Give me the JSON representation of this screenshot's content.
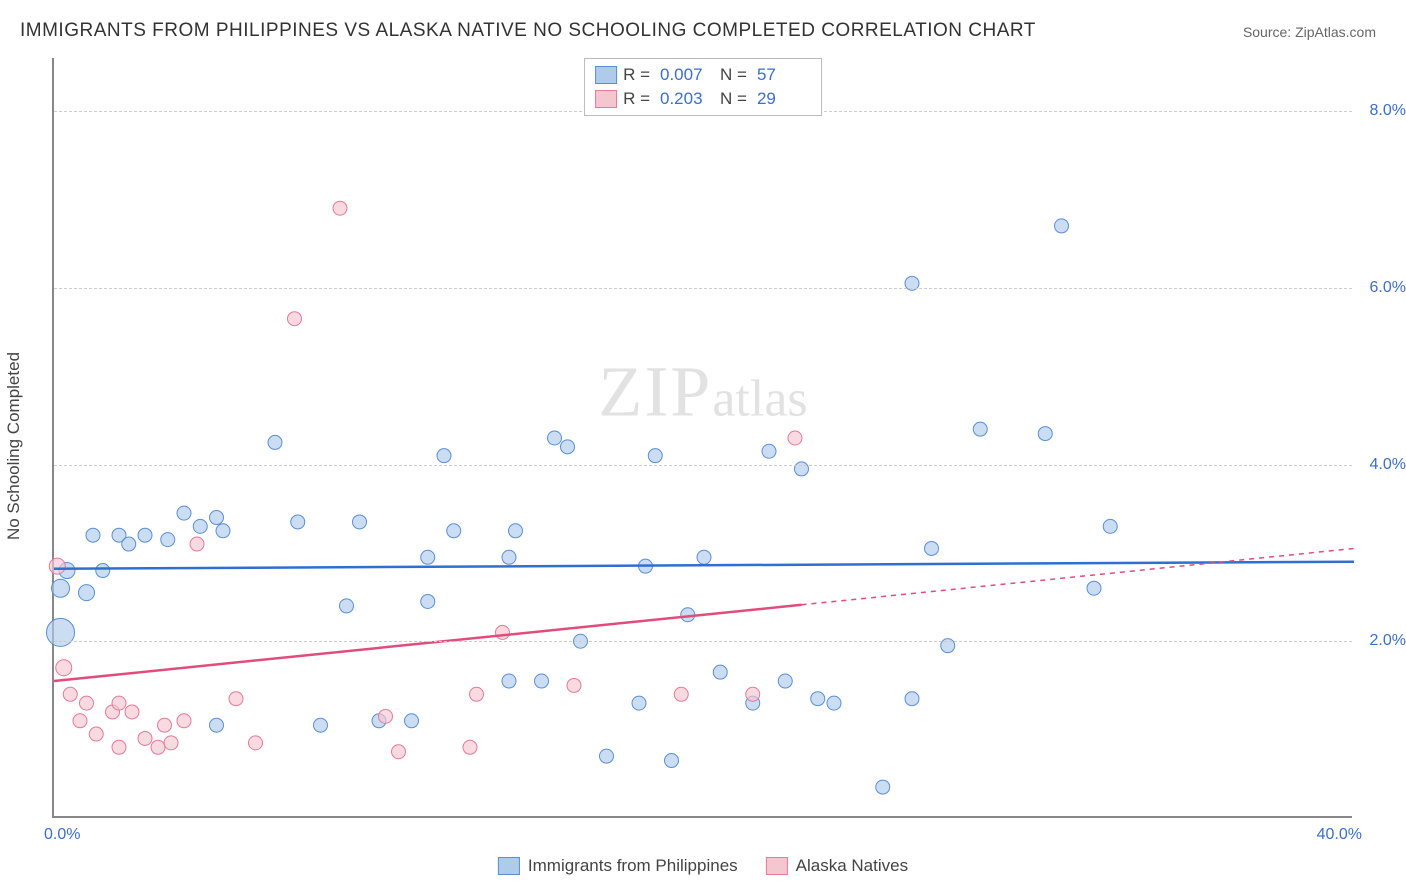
{
  "title": "IMMIGRANTS FROM PHILIPPINES VS ALASKA NATIVE NO SCHOOLING COMPLETED CORRELATION CHART",
  "source": "Source: ZipAtlas.com",
  "watermark_zip": "ZIP",
  "watermark_atlas": "atlas",
  "ylabel": "No Schooling Completed",
  "chart": {
    "type": "scatter",
    "xlim": [
      0,
      40
    ],
    "ylim": [
      0,
      8.6
    ],
    "x_tick_min": "0.0%",
    "x_tick_max": "40.0%",
    "y_ticks": [
      {
        "v": 2.0,
        "label": "2.0%"
      },
      {
        "v": 4.0,
        "label": "4.0%"
      },
      {
        "v": 6.0,
        "label": "6.0%"
      },
      {
        "v": 8.0,
        "label": "8.0%"
      }
    ],
    "background_color": "#ffffff",
    "grid_color": "#cccccc",
    "series": [
      {
        "key": "philippines",
        "label": "Immigrants from Philippines",
        "fill": "#aecbeb",
        "stroke": "#5a8fd6",
        "line_color": "#2f6fd0",
        "r_value": "0.007",
        "n_value": "57",
        "trend": {
          "x1": 0,
          "y1": 2.82,
          "x2": 40,
          "y2": 2.9,
          "solid_to": 40
        },
        "points": [
          {
            "x": 0.2,
            "y": 2.1,
            "r": 14
          },
          {
            "x": 0.2,
            "y": 2.6,
            "r": 9
          },
          {
            "x": 0.4,
            "y": 2.8,
            "r": 8
          },
          {
            "x": 1.0,
            "y": 2.55,
            "r": 8
          },
          {
            "x": 1.2,
            "y": 3.2,
            "r": 7
          },
          {
            "x": 1.5,
            "y": 2.8,
            "r": 7
          },
          {
            "x": 2.0,
            "y": 3.2,
            "r": 7
          },
          {
            "x": 2.3,
            "y": 3.1,
            "r": 7
          },
          {
            "x": 2.8,
            "y": 3.2,
            "r": 7
          },
          {
            "x": 3.5,
            "y": 3.15,
            "r": 7
          },
          {
            "x": 4.0,
            "y": 3.45,
            "r": 7
          },
          {
            "x": 4.5,
            "y": 3.3,
            "r": 7
          },
          {
            "x": 5.0,
            "y": 3.4,
            "r": 7
          },
          {
            "x": 5.2,
            "y": 3.25,
            "r": 7
          },
          {
            "x": 6.8,
            "y": 4.25,
            "r": 7
          },
          {
            "x": 7.5,
            "y": 3.35,
            "r": 7
          },
          {
            "x": 9.0,
            "y": 2.4,
            "r": 7
          },
          {
            "x": 9.4,
            "y": 3.35,
            "r": 7
          },
          {
            "x": 10.0,
            "y": 1.1,
            "r": 7
          },
          {
            "x": 11.0,
            "y": 1.1,
            "r": 7
          },
          {
            "x": 11.5,
            "y": 2.45,
            "r": 7
          },
          {
            "x": 11.5,
            "y": 2.95,
            "r": 7
          },
          {
            "x": 12.0,
            "y": 4.1,
            "r": 7
          },
          {
            "x": 12.3,
            "y": 3.25,
            "r": 7
          },
          {
            "x": 14.0,
            "y": 1.55,
            "r": 7
          },
          {
            "x": 14.0,
            "y": 2.95,
            "r": 7
          },
          {
            "x": 14.2,
            "y": 3.25,
            "r": 7
          },
          {
            "x": 15.0,
            "y": 1.55,
            "r": 7
          },
          {
            "x": 15.4,
            "y": 4.3,
            "r": 7
          },
          {
            "x": 15.8,
            "y": 4.2,
            "r": 7
          },
          {
            "x": 16.2,
            "y": 2.0,
            "r": 7
          },
          {
            "x": 17.0,
            "y": 0.7,
            "r": 7
          },
          {
            "x": 18.0,
            "y": 1.3,
            "r": 7
          },
          {
            "x": 18.5,
            "y": 4.1,
            "r": 7
          },
          {
            "x": 19.0,
            "y": 0.65,
            "r": 7
          },
          {
            "x": 19.5,
            "y": 2.3,
            "r": 7
          },
          {
            "x": 20.0,
            "y": 2.95,
            "r": 7
          },
          {
            "x": 20.5,
            "y": 1.65,
            "r": 7
          },
          {
            "x": 21.5,
            "y": 1.3,
            "r": 7
          },
          {
            "x": 22.0,
            "y": 4.15,
            "r": 7
          },
          {
            "x": 22.5,
            "y": 1.55,
            "r": 7
          },
          {
            "x": 23.0,
            "y": 3.95,
            "r": 7
          },
          {
            "x": 23.5,
            "y": 1.35,
            "r": 7
          },
          {
            "x": 24.0,
            "y": 1.3,
            "r": 7
          },
          {
            "x": 25.5,
            "y": 0.35,
            "r": 7
          },
          {
            "x": 26.4,
            "y": 6.05,
            "r": 7
          },
          {
            "x": 26.4,
            "y": 1.35,
            "r": 7
          },
          {
            "x": 27.0,
            "y": 3.05,
            "r": 7
          },
          {
            "x": 27.5,
            "y": 1.95,
            "r": 7
          },
          {
            "x": 28.5,
            "y": 4.4,
            "r": 7
          },
          {
            "x": 30.5,
            "y": 4.35,
            "r": 7
          },
          {
            "x": 31.0,
            "y": 6.7,
            "r": 7
          },
          {
            "x": 32.0,
            "y": 2.6,
            "r": 7
          },
          {
            "x": 32.5,
            "y": 3.3,
            "r": 7
          },
          {
            "x": 18.2,
            "y": 2.85,
            "r": 7
          },
          {
            "x": 8.2,
            "y": 1.05,
            "r": 7
          },
          {
            "x": 5.0,
            "y": 1.05,
            "r": 7
          }
        ]
      },
      {
        "key": "alaska",
        "label": "Alaska Natives",
        "fill": "#f4c6cf",
        "stroke": "#e67a98",
        "line_color": "#e14d7b",
        "r_value": "0.203",
        "n_value": "29",
        "trend": {
          "x1": 0,
          "y1": 1.55,
          "x2": 40,
          "y2": 3.05,
          "solid_to": 23
        },
        "points": [
          {
            "x": 0.1,
            "y": 2.85,
            "r": 8
          },
          {
            "x": 0.3,
            "y": 1.7,
            "r": 8
          },
          {
            "x": 0.5,
            "y": 1.4,
            "r": 7
          },
          {
            "x": 0.8,
            "y": 1.1,
            "r": 7
          },
          {
            "x": 1.0,
            "y": 1.3,
            "r": 7
          },
          {
            "x": 1.3,
            "y": 0.95,
            "r": 7
          },
          {
            "x": 1.8,
            "y": 1.2,
            "r": 7
          },
          {
            "x": 2.0,
            "y": 0.8,
            "r": 7
          },
          {
            "x": 2.0,
            "y": 1.3,
            "r": 7
          },
          {
            "x": 2.4,
            "y": 1.2,
            "r": 7
          },
          {
            "x": 2.8,
            "y": 0.9,
            "r": 7
          },
          {
            "x": 3.2,
            "y": 0.8,
            "r": 7
          },
          {
            "x": 3.4,
            "y": 1.05,
            "r": 7
          },
          {
            "x": 3.6,
            "y": 0.85,
            "r": 7
          },
          {
            "x": 4.0,
            "y": 1.1,
            "r": 7
          },
          {
            "x": 4.4,
            "y": 3.1,
            "r": 7
          },
          {
            "x": 5.6,
            "y": 1.35,
            "r": 7
          },
          {
            "x": 6.2,
            "y": 0.85,
            "r": 7
          },
          {
            "x": 7.4,
            "y": 5.65,
            "r": 7
          },
          {
            "x": 8.8,
            "y": 6.9,
            "r": 7
          },
          {
            "x": 10.2,
            "y": 1.15,
            "r": 7
          },
          {
            "x": 10.6,
            "y": 0.75,
            "r": 7
          },
          {
            "x": 12.8,
            "y": 0.8,
            "r": 7
          },
          {
            "x": 13.0,
            "y": 1.4,
            "r": 7
          },
          {
            "x": 13.8,
            "y": 2.1,
            "r": 7
          },
          {
            "x": 16.0,
            "y": 1.5,
            "r": 7
          },
          {
            "x": 19.3,
            "y": 1.4,
            "r": 7
          },
          {
            "x": 21.5,
            "y": 1.4,
            "r": 7
          },
          {
            "x": 22.8,
            "y": 4.3,
            "r": 7
          }
        ]
      }
    ]
  }
}
